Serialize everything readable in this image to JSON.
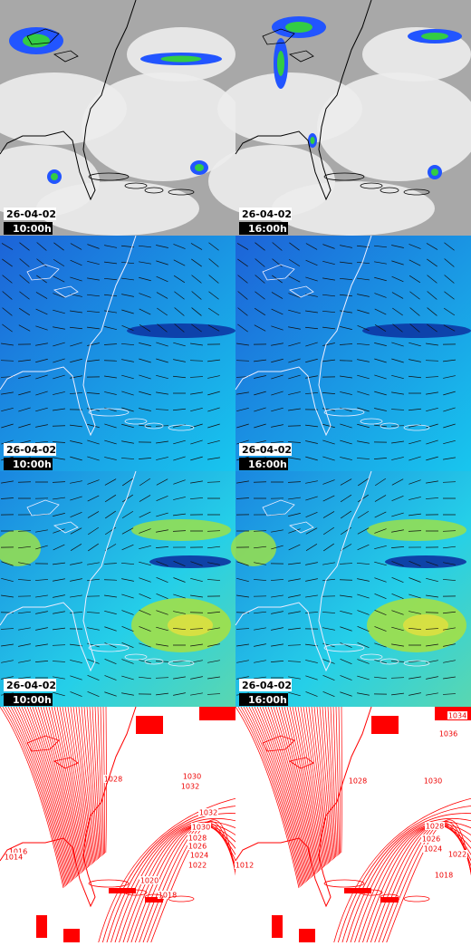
{
  "panels": [
    {
      "kind": "satellite",
      "frames": [
        {
          "date": "26-04-02",
          "time": "10:00h"
        },
        {
          "date": "26-04-02",
          "time": "16:00h"
        }
      ]
    },
    {
      "kind": "wind",
      "frames": [
        {
          "date": "26-04-02",
          "time": "10:00h"
        },
        {
          "date": "26-04-02",
          "time": "16:00h"
        }
      ]
    },
    {
      "kind": "windspeed",
      "frames": [
        {
          "date": "26-04-02",
          "time": "10:00h"
        },
        {
          "date": "26-04-02",
          "time": "16:00h"
        }
      ]
    },
    {
      "kind": "pressure",
      "frames": [
        {
          "isobar_labels": [
            "1028",
            "1030",
            "1032",
            "1032",
            "1030",
            "1028",
            "1026",
            "1024",
            "1022",
            "1016",
            "1014",
            "1020",
            "1018"
          ]
        },
        {
          "isobar_labels": [
            "1034",
            "1036",
            "1028",
            "1030",
            "1028",
            "1026",
            "1024",
            "1022",
            "1018",
            "1012"
          ]
        }
      ]
    }
  ]
}
